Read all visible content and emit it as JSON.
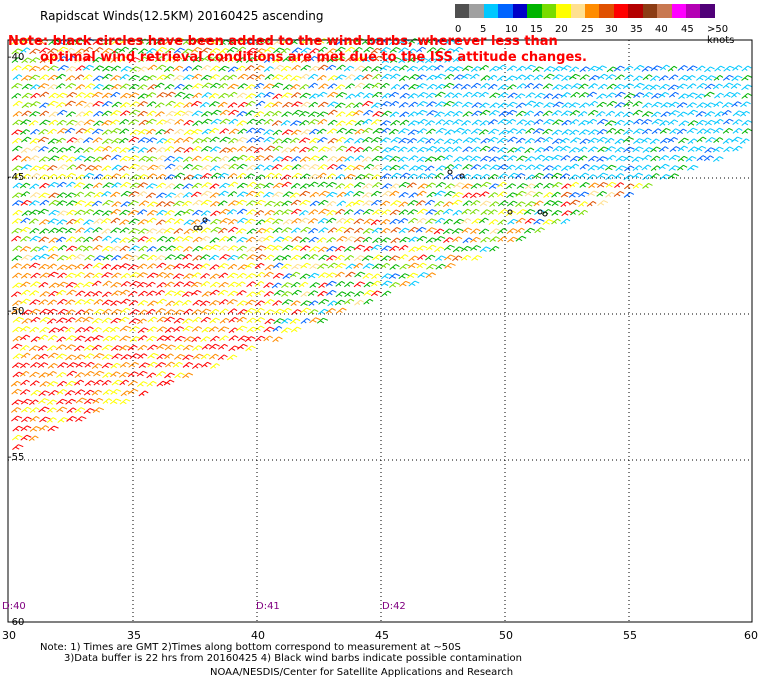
{
  "title": "Rapidscat Winds(12.5KM) 20160425 ascending",
  "note_lines": [
    "Note: black circles have been added to the wind barbs, wherever less than",
    "optimal wind retrieval conditions are met due to the ISS attitude changes."
  ],
  "legend": {
    "labels": [
      "0",
      "5",
      "10",
      "15",
      "20",
      "25",
      "30",
      "35",
      "40",
      "45",
      ">50 knots"
    ],
    "colors": [
      "#505050",
      "#a0a0a0",
      "#00c8ff",
      "#0064ff",
      "#0000c8",
      "#00b400",
      "#78dc00",
      "#ffff00",
      "#ffe090",
      "#ff8c00",
      "#e05000",
      "#ff0000",
      "#b40000",
      "#8c3c14",
      "#c87850",
      "#ff00ff",
      "#b400b4",
      "#500078"
    ]
  },
  "axes": {
    "lon_labels": [
      "30",
      "35",
      "40",
      "45",
      "50",
      "55",
      "60"
    ],
    "lat_labels": [
      "-40",
      "-45",
      "-50",
      "-55",
      "-60"
    ]
  },
  "time_labels": [
    "D:40",
    "D:41",
    "D:42"
  ],
  "footer": {
    "line1": "Note: 1) Times are GMT 2)Times along bottom correspond to measurement at ~50S",
    "line2": "3)Data buffer is 22 hrs from 20160425 4) Black wind barbs indicate possible contamination",
    "line3": "NOAA/NESDIS/Center for Satellite Applications and Research"
  }
}
